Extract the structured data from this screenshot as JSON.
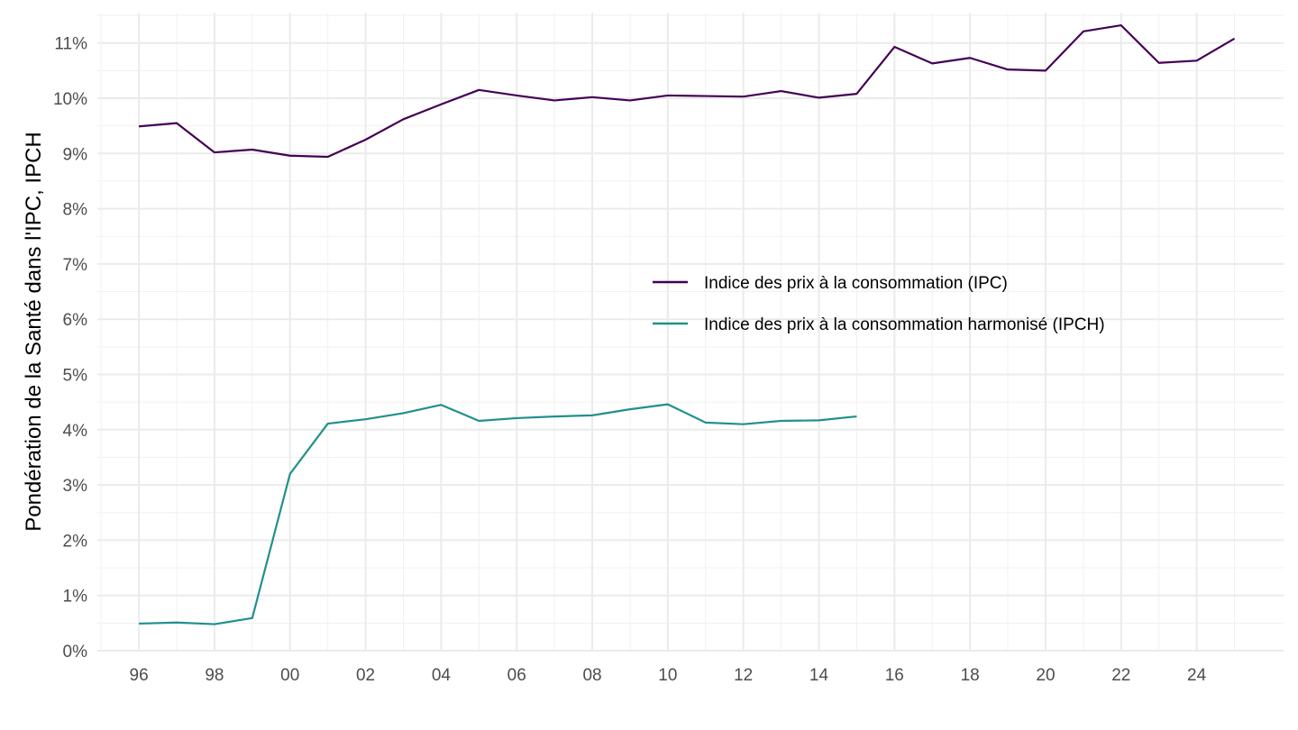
{
  "chart_data": {
    "type": "line",
    "title": "",
    "xlabel": "",
    "ylabel": "Pondération de la Santé dans l'IPC, IPCH",
    "x": [
      1996,
      1997,
      1998,
      1999,
      2000,
      2001,
      2002,
      2003,
      2004,
      2005,
      2006,
      2007,
      2008,
      2009,
      2010,
      2011,
      2012,
      2013,
      2014,
      2015,
      2016,
      2017,
      2018,
      2019,
      2020,
      2021,
      2022,
      2023,
      2024,
      2025
    ],
    "xlim": [
      1994.9,
      2026.3
    ],
    "ylim": [
      0,
      11.55
    ],
    "x_ticks": [
      {
        "value": 1996,
        "label": "96"
      },
      {
        "value": 1998,
        "label": "98"
      },
      {
        "value": 2000,
        "label": "00"
      },
      {
        "value": 2002,
        "label": "02"
      },
      {
        "value": 2004,
        "label": "04"
      },
      {
        "value": 2006,
        "label": "06"
      },
      {
        "value": 2008,
        "label": "08"
      },
      {
        "value": 2010,
        "label": "10"
      },
      {
        "value": 2012,
        "label": "12"
      },
      {
        "value": 2014,
        "label": "14"
      },
      {
        "value": 2016,
        "label": "16"
      },
      {
        "value": 2018,
        "label": "18"
      },
      {
        "value": 2020,
        "label": "20"
      },
      {
        "value": 2022,
        "label": "22"
      },
      {
        "value": 2024,
        "label": "24"
      }
    ],
    "y_ticks": [
      {
        "value": 0,
        "label": "0%"
      },
      {
        "value": 1,
        "label": "1%"
      },
      {
        "value": 2,
        "label": "2%"
      },
      {
        "value": 3,
        "label": "3%"
      },
      {
        "value": 4,
        "label": "4%"
      },
      {
        "value": 5,
        "label": "5%"
      },
      {
        "value": 6,
        "label": "6%"
      },
      {
        "value": 7,
        "label": "7%"
      },
      {
        "value": 8,
        "label": "8%"
      },
      {
        "value": 9,
        "label": "9%"
      },
      {
        "value": 10,
        "label": "10%"
      },
      {
        "value": 11,
        "label": "11%"
      }
    ],
    "grid": true,
    "legend_position": "center-right",
    "series": [
      {
        "name": "Indice des prix à la consommation (IPC)",
        "color": "#440154",
        "values": [
          9.49,
          9.55,
          9.02,
          9.07,
          8.96,
          8.94,
          9.25,
          9.62,
          9.89,
          10.15,
          10.05,
          9.96,
          10.02,
          9.96,
          10.05,
          10.04,
          10.03,
          10.13,
          10.01,
          10.08,
          10.93,
          10.63,
          10.73,
          10.52,
          10.5,
          11.21,
          11.32,
          10.64,
          10.68,
          11.08
        ]
      },
      {
        "name": "Indice des prix à la consommation harmonisé (IPCH)",
        "color": "#21908C",
        "values": [
          0.49,
          0.51,
          0.48,
          0.59,
          3.2,
          4.11,
          4.19,
          4.3,
          4.45,
          4.16,
          4.21,
          4.24,
          4.26,
          4.37,
          4.46,
          4.13,
          4.1,
          4.16,
          4.17,
          4.24,
          null,
          null,
          null,
          null,
          null,
          null,
          null,
          null,
          null,
          null
        ]
      }
    ]
  }
}
